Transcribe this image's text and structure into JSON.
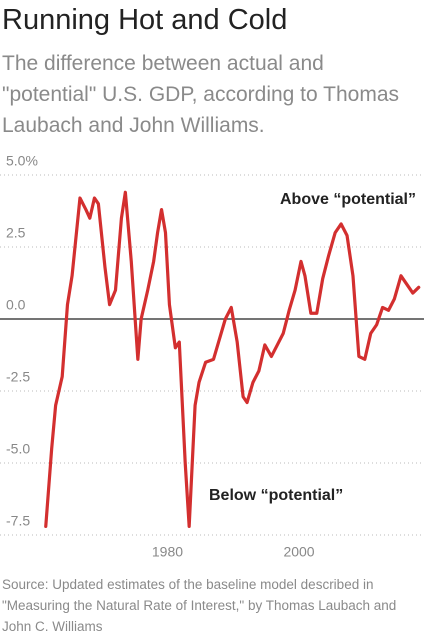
{
  "chart_data": {
    "type": "line",
    "title": "Running Hot and Cold",
    "subtitle": "The difference between actual and \"potential\" U.S. GDP, according to Thomas Laubach and John Williams.",
    "source": "Source: Updated estimates of the baseline model described in \"Measuring the Natural Rate of Interest,\" by Thomas Laubach and John C. Williams",
    "annotations": [
      "Above “potential”",
      "Below “potential”"
    ],
    "xlim": [
      1955,
      2019
    ],
    "xticks": [
      1980,
      2000
    ],
    "ylim": [
      -7.5,
      5
    ],
    "yticks": [
      {
        "value": 5,
        "label": "5.0%"
      },
      2.5,
      {
        "value": 0,
        "label": "0.0"
      },
      -2.5,
      {
        "value": -5,
        "label": "-5.0"
      },
      -7.5
    ],
    "grid": true,
    "x": [
      1961.5,
      1962.4,
      1963,
      1964,
      1964.8,
      1965.5,
      1966.7,
      1967.6,
      1968.2,
      1968.9,
      1969.5,
      1970.5,
      1971.2,
      1972.1,
      1973,
      1973.6,
      1974.5,
      1975.5,
      1976,
      1977,
      1977.9,
      1978.5,
      1979.1,
      1979.7,
      1980.3,
      1981.2,
      1981.8,
      1982.7,
      1983.3,
      1984.2,
      1984.8,
      1985.8,
      1987,
      1987.9,
      1988.8,
      1989.7,
      1990.6,
      1991.5,
      1992.1,
      1993,
      1993.9,
      1994.8,
      1995.8,
      1996.7,
      1997.6,
      1998.5,
      1999.4,
      2000.3,
      2000.9,
      2001.8,
      2002.7,
      2003.6,
      2004.5,
      2005.5,
      2006.4,
      2007.3,
      2008.2,
      2009.1,
      2010,
      2010.9,
      2011.8,
      2012.7,
      2013.6,
      2014.5,
      2015.5,
      2016.4,
      2017.3,
      2018.2
    ],
    "series": [
      {
        "color": "#d32f2f",
        "values": [
          -7.2,
          -4.5,
          -3.0,
          -2.0,
          0.5,
          1.5,
          4.2,
          3.8,
          3.5,
          4.2,
          4.0,
          1.8,
          0.5,
          1.0,
          3.5,
          4.4,
          2.0,
          -1.4,
          0.0,
          1.0,
          2.0,
          3.0,
          3.8,
          3.0,
          0.5,
          -1.0,
          -0.8,
          -5.0,
          -7.2,
          -3.0,
          -2.2,
          -1.5,
          -1.4,
          -0.7,
          0.0,
          0.4,
          -0.8,
          -2.7,
          -2.9,
          -2.2,
          -1.8,
          -0.9,
          -1.3,
          -0.9,
          -0.5,
          0.3,
          1.0,
          2.0,
          1.5,
          0.2,
          0.2,
          1.4,
          2.2,
          3.0,
          3.3,
          2.9,
          1.5,
          -1.3,
          -1.4,
          -0.5,
          -0.2,
          0.4,
          0.3,
          0.7,
          1.5,
          1.2,
          0.9,
          1.1
        ]
      }
    ]
  }
}
